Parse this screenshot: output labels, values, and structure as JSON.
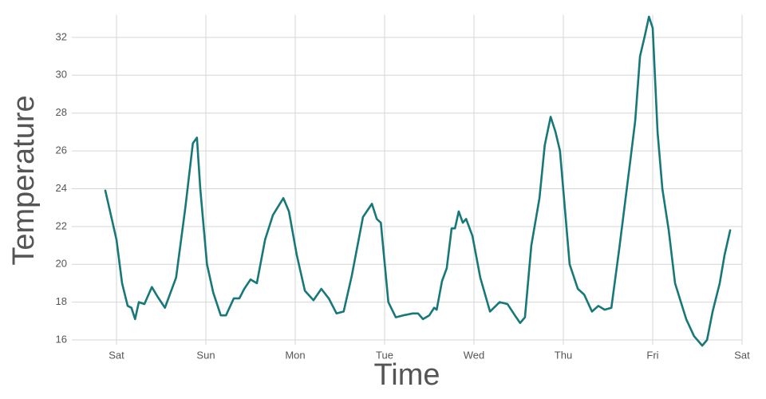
{
  "chart_data": {
    "type": "line",
    "x_label": "Time",
    "y_label": "Temperature",
    "xlim": [
      -12,
      168
    ],
    "ylim": [
      15.4,
      33.2
    ],
    "xticks": [
      {
        "value": 0,
        "label": "Sat"
      },
      {
        "value": 24,
        "label": "Sun"
      },
      {
        "value": 48,
        "label": "Mon"
      },
      {
        "value": 72,
        "label": "Tue"
      },
      {
        "value": 96,
        "label": "Wed"
      },
      {
        "value": 120,
        "label": "Thu"
      },
      {
        "value": 144,
        "label": "Fri"
      },
      {
        "value": 168,
        "label": "Sat"
      }
    ],
    "yticks": [
      16,
      18,
      20,
      22,
      24,
      26,
      28,
      30,
      32
    ],
    "grid": true,
    "series": [
      {
        "color": "#17787a",
        "x": [
          -3,
          0,
          1.5,
          3,
          4,
          5,
          6,
          7.5,
          9.5,
          11,
          13,
          16,
          18.5,
          20.5,
          21.6,
          22.5,
          24.3,
          26,
          28,
          29.4,
          31.5,
          33,
          34.3,
          36,
          37.7,
          39.9,
          42,
          44.8,
          46.3,
          48.4,
          50.6,
          52.9,
          55,
          57,
          59.1,
          61,
          63.2,
          66.2,
          68.6,
          69.9,
          71,
          73,
          75,
          77,
          79.5,
          81,
          82.3,
          84,
          85.3,
          86,
          87.4,
          88.7,
          90,
          90.9,
          91.9,
          93,
          93.9,
          95.6,
          97.7,
          100.3,
          102.9,
          105,
          107,
          108.4,
          109.7,
          111.4,
          113.6,
          115,
          116.6,
          117.9,
          119.1,
          121.7,
          123.9,
          125.6,
          127.7,
          129.4,
          131.1,
          132.9,
          135,
          138,
          139.3,
          140.6,
          141.9,
          143,
          144,
          145.3,
          146.6,
          148.3,
          150,
          153,
          155.1,
          157.3,
          158.6,
          160.1,
          162,
          163.3,
          164.8
        ],
        "values": [
          23.9,
          21.3,
          19,
          17.8,
          17.7,
          17.1,
          18,
          17.9,
          18.8,
          18.3,
          17.7,
          19.3,
          23,
          26.4,
          26.7,
          24,
          20,
          18.5,
          17.3,
          17.3,
          18.2,
          18.2,
          18.7,
          19.2,
          19,
          21.3,
          22.6,
          23.5,
          22.8,
          20.5,
          18.6,
          18.1,
          18.7,
          18.2,
          17.4,
          17.5,
          19.4,
          22.5,
          23.2,
          22.4,
          22.2,
          18,
          17.2,
          17.3,
          17.4,
          17.4,
          17.1,
          17.3,
          17.7,
          17.6,
          19.1,
          19.8,
          21.9,
          21.9,
          22.8,
          22.2,
          22.4,
          21.5,
          19.3,
          17.5,
          18,
          17.9,
          17.3,
          16.9,
          17.2,
          21,
          23.5,
          26.3,
          27.8,
          27,
          26,
          20,
          18.7,
          18.4,
          17.5,
          17.8,
          17.6,
          17.7,
          20.8,
          25.5,
          27.6,
          31,
          32.1,
          33.1,
          32.5,
          27,
          24,
          21.8,
          19,
          17.1,
          16.2,
          15.7,
          16,
          17.5,
          19,
          20.5,
          21.8
        ]
      }
    ]
  }
}
